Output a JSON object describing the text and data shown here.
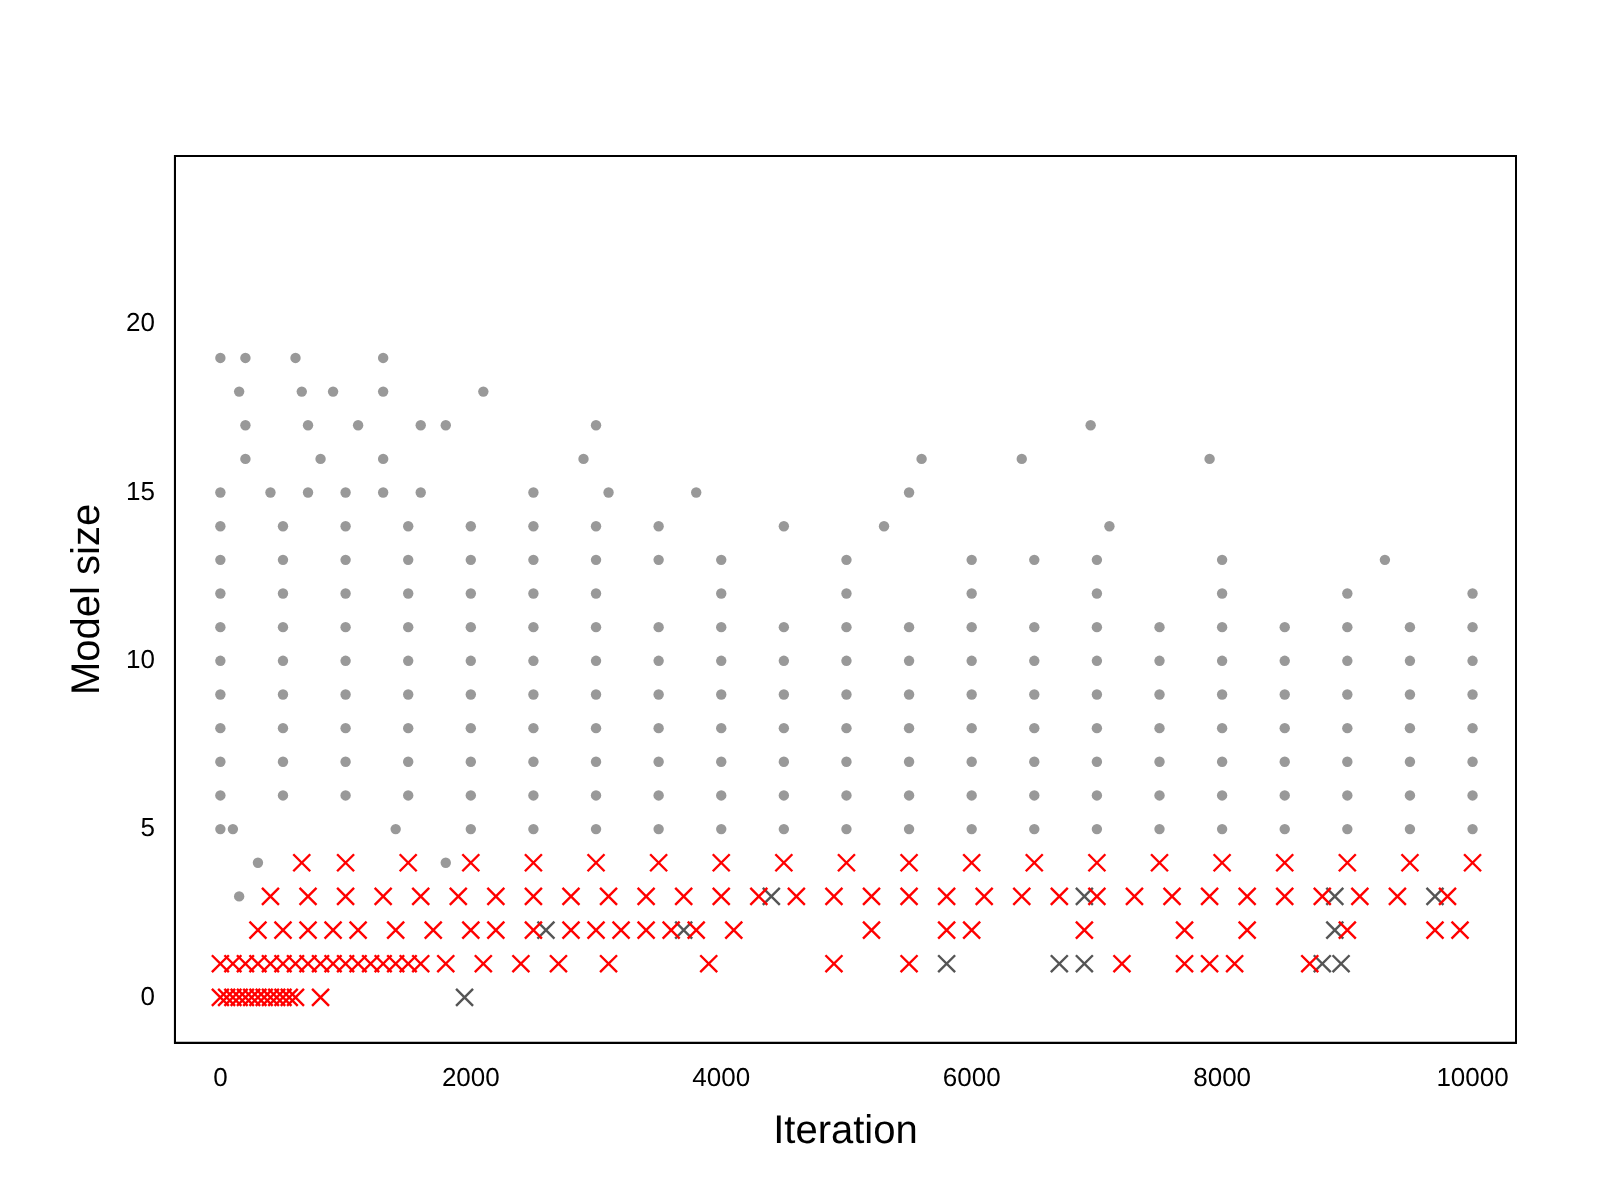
{
  "chart_data": {
    "type": "scatter",
    "xlabel": "Iteration",
    "ylabel": "Model size",
    "xlim": [
      -363,
      10347
    ],
    "ylim": [
      -1.35,
      25
    ],
    "xticks": [
      0,
      2000,
      4000,
      6000,
      8000,
      10000
    ],
    "yticks": [
      0,
      5,
      10,
      15,
      20
    ],
    "grid": false,
    "legend": false,
    "series": [
      {
        "color": "#999999",
        "marker": "circle",
        "x": [
          0,
          500,
          1000,
          1500,
          2000,
          2500,
          3000,
          3500,
          4000,
          4500,
          5000,
          5500,
          6000,
          6500,
          7000,
          7500,
          8000,
          8500,
          9000,
          9500,
          10000,
          0,
          500,
          1000,
          1500,
          2000,
          2500,
          3000,
          3500,
          4000,
          4500,
          5000,
          5500,
          6000,
          6500,
          7000,
          7500,
          8000,
          8500,
          9000,
          9500,
          10000,
          0,
          500,
          1000,
          1500,
          2000,
          2500,
          3000,
          3500,
          4000,
          4500,
          5000,
          5500,
          6000,
          6500,
          7000,
          7500,
          8000,
          8500,
          9000,
          9500,
          10000
        ],
        "values": [
          6,
          6,
          6,
          6,
          6,
          6,
          6,
          6,
          6,
          6,
          6,
          6,
          6,
          6,
          6,
          6,
          6,
          6,
          6,
          6,
          6,
          7,
          7,
          7,
          7,
          7,
          7,
          7,
          7,
          7,
          7,
          7,
          7,
          7,
          7,
          7,
          7,
          7,
          7,
          7,
          7,
          7,
          8,
          8,
          8,
          8,
          8,
          8,
          8,
          8,
          8,
          8,
          8,
          8,
          8,
          8,
          8,
          8,
          8,
          8,
          8,
          8,
          8
        ]
      },
      {
        "color": "#999999",
        "marker": "circle",
        "x": [
          0,
          500,
          1000,
          1500,
          2000,
          2500,
          3000,
          3500,
          4000,
          4500,
          5000,
          5500,
          6000,
          6500,
          7000,
          7500,
          8000,
          8500,
          9000,
          9500,
          10000,
          0,
          500,
          1000,
          1500,
          2000,
          2500,
          3000,
          3500,
          4000,
          4500,
          5000,
          5500,
          6000,
          6500,
          7000,
          7500,
          8000,
          8500,
          9000,
          9500,
          10000,
          0,
          500,
          1000,
          1500,
          2000,
          2500,
          3000,
          3500,
          4000,
          4500,
          5000,
          5500,
          6000,
          6500,
          7000,
          7500,
          8000,
          8500,
          9000,
          9500,
          10000
        ],
        "values": [
          9,
          9,
          9,
          9,
          9,
          9,
          9,
          9,
          9,
          9,
          9,
          9,
          9,
          9,
          9,
          9,
          9,
          9,
          9,
          9,
          9,
          10,
          10,
          10,
          10,
          10,
          10,
          10,
          10,
          10,
          10,
          10,
          10,
          10,
          10,
          10,
          10,
          10,
          10,
          10,
          10,
          10,
          11,
          11,
          11,
          11,
          11,
          11,
          11,
          11,
          11,
          11,
          11,
          11,
          11,
          11,
          11,
          11,
          11,
          11,
          11,
          11,
          11
        ]
      },
      {
        "color": "#999999",
        "marker": "circle",
        "x": [
          0,
          500,
          1000,
          1500,
          2000,
          2500,
          3000,
          4000,
          5000,
          6000,
          7000,
          8000,
          9000,
          10000,
          0,
          500,
          1000,
          1500,
          2000,
          2500,
          3000,
          3500,
          4000,
          5000,
          6000,
          6500,
          7000,
          8000,
          9300,
          0,
          500,
          1000,
          1500,
          2000,
          2500,
          3000,
          3500,
          4500,
          5300,
          7100,
          0,
          400,
          700,
          1000,
          1300,
          1600,
          2500,
          3100,
          3800,
          5500,
          200,
          800,
          1300,
          2900,
          5600,
          6400,
          7900,
          200,
          700,
          1100,
          1600,
          1800,
          3000,
          6950,
          150,
          650,
          900,
          1300,
          2100,
          0,
          200,
          600,
          1300
        ],
        "values": [
          12,
          12,
          12,
          12,
          12,
          12,
          12,
          12,
          12,
          12,
          12,
          12,
          12,
          12,
          13,
          13,
          13,
          13,
          13,
          13,
          13,
          13,
          13,
          13,
          13,
          13,
          13,
          13,
          13,
          14,
          14,
          14,
          14,
          14,
          14,
          14,
          14,
          14,
          14,
          14,
          15,
          15,
          15,
          15,
          15,
          15,
          15,
          15,
          15,
          15,
          16,
          16,
          16,
          16,
          16,
          16,
          16,
          17,
          17,
          17,
          17,
          17,
          17,
          17,
          18,
          18,
          18,
          18,
          18,
          19,
          19,
          19,
          19
        ]
      },
      {
        "color": "#999999",
        "marker": "circle",
        "x": [
          0,
          100,
          1400,
          2000,
          2500,
          3000,
          3500,
          4000,
          4500,
          5000,
          5500,
          6000,
          6500,
          7000,
          7500,
          8000,
          8500,
          9000,
          9500,
          10000,
          300,
          1800,
          150
        ],
        "values": [
          5,
          5,
          5,
          5,
          5,
          5,
          5,
          5,
          5,
          5,
          5,
          5,
          5,
          5,
          5,
          5,
          5,
          5,
          5,
          5,
          4,
          4,
          3
        ]
      },
      {
        "color": "#ff0000",
        "marker": "cross",
        "x": [
          650,
          1000,
          1500,
          2000,
          2500,
          3000,
          3500,
          4000,
          4500,
          5000,
          5500,
          6000,
          6500,
          7000,
          7500,
          8000,
          8500,
          9000,
          9500,
          10000,
          400,
          700,
          1000,
          1300,
          1600,
          1900,
          2200,
          2500,
          2800,
          3100,
          3400,
          3700,
          4000,
          4300,
          4600,
          4900,
          5200,
          5500,
          5800,
          6100,
          6400,
          6700,
          7000,
          7300,
          7600,
          7900,
          8200,
          8500,
          8800,
          9100,
          9400,
          9800
        ],
        "values": [
          4,
          4,
          4,
          4,
          4,
          4,
          4,
          4,
          4,
          4,
          4,
          4,
          4,
          4,
          4,
          4,
          4,
          4,
          4,
          4,
          3,
          3,
          3,
          3,
          3,
          3,
          3,
          3,
          3,
          3,
          3,
          3,
          3,
          3,
          3,
          3,
          3,
          3,
          3,
          3,
          3,
          3,
          3,
          3,
          3,
          3,
          3,
          3,
          3,
          3,
          3,
          3
        ]
      },
      {
        "color": "#ff0000",
        "marker": "cross",
        "x": [
          300,
          500,
          700,
          900,
          1100,
          1400,
          1700,
          2000,
          2200,
          2500,
          2800,
          3000,
          3200,
          3400,
          3600,
          3800,
          4100,
          5200,
          5800,
          6000,
          6900,
          7700,
          8200,
          9000,
          9700,
          9900,
          0,
          100,
          200,
          300,
          400,
          500,
          600,
          700,
          800,
          900,
          1000,
          1100,
          1200,
          1300,
          1400,
          1500,
          1600,
          1800,
          2100,
          2400,
          2700,
          3100,
          3900,
          4900,
          5500,
          7200,
          7700,
          7900,
          8100,
          8700,
          0,
          50,
          100,
          150,
          200,
          250,
          300,
          350,
          400,
          450,
          500,
          550,
          600,
          800
        ],
        "values": [
          2,
          2,
          2,
          2,
          2,
          2,
          2,
          2,
          2,
          2,
          2,
          2,
          2,
          2,
          2,
          2,
          2,
          2,
          2,
          2,
          2,
          2,
          2,
          2,
          2,
          2,
          1,
          1,
          1,
          1,
          1,
          1,
          1,
          1,
          1,
          1,
          1,
          1,
          1,
          1,
          1,
          1,
          1,
          1,
          1,
          1,
          1,
          1,
          1,
          1,
          1,
          1,
          1,
          1,
          1,
          1,
          0,
          0,
          0,
          0,
          0,
          0,
          0,
          0,
          0,
          0,
          0,
          0,
          0,
          0
        ]
      },
      {
        "color": "#555555",
        "marker": "cross",
        "x": [
          4400,
          6900,
          8900,
          9700,
          2600,
          3700,
          8900,
          5800,
          6700,
          6900,
          8800,
          8950,
          1950
        ],
        "values": [
          3,
          3,
          3,
          3,
          2,
          2,
          2,
          1,
          1,
          1,
          1,
          1,
          0
        ]
      }
    ]
  }
}
